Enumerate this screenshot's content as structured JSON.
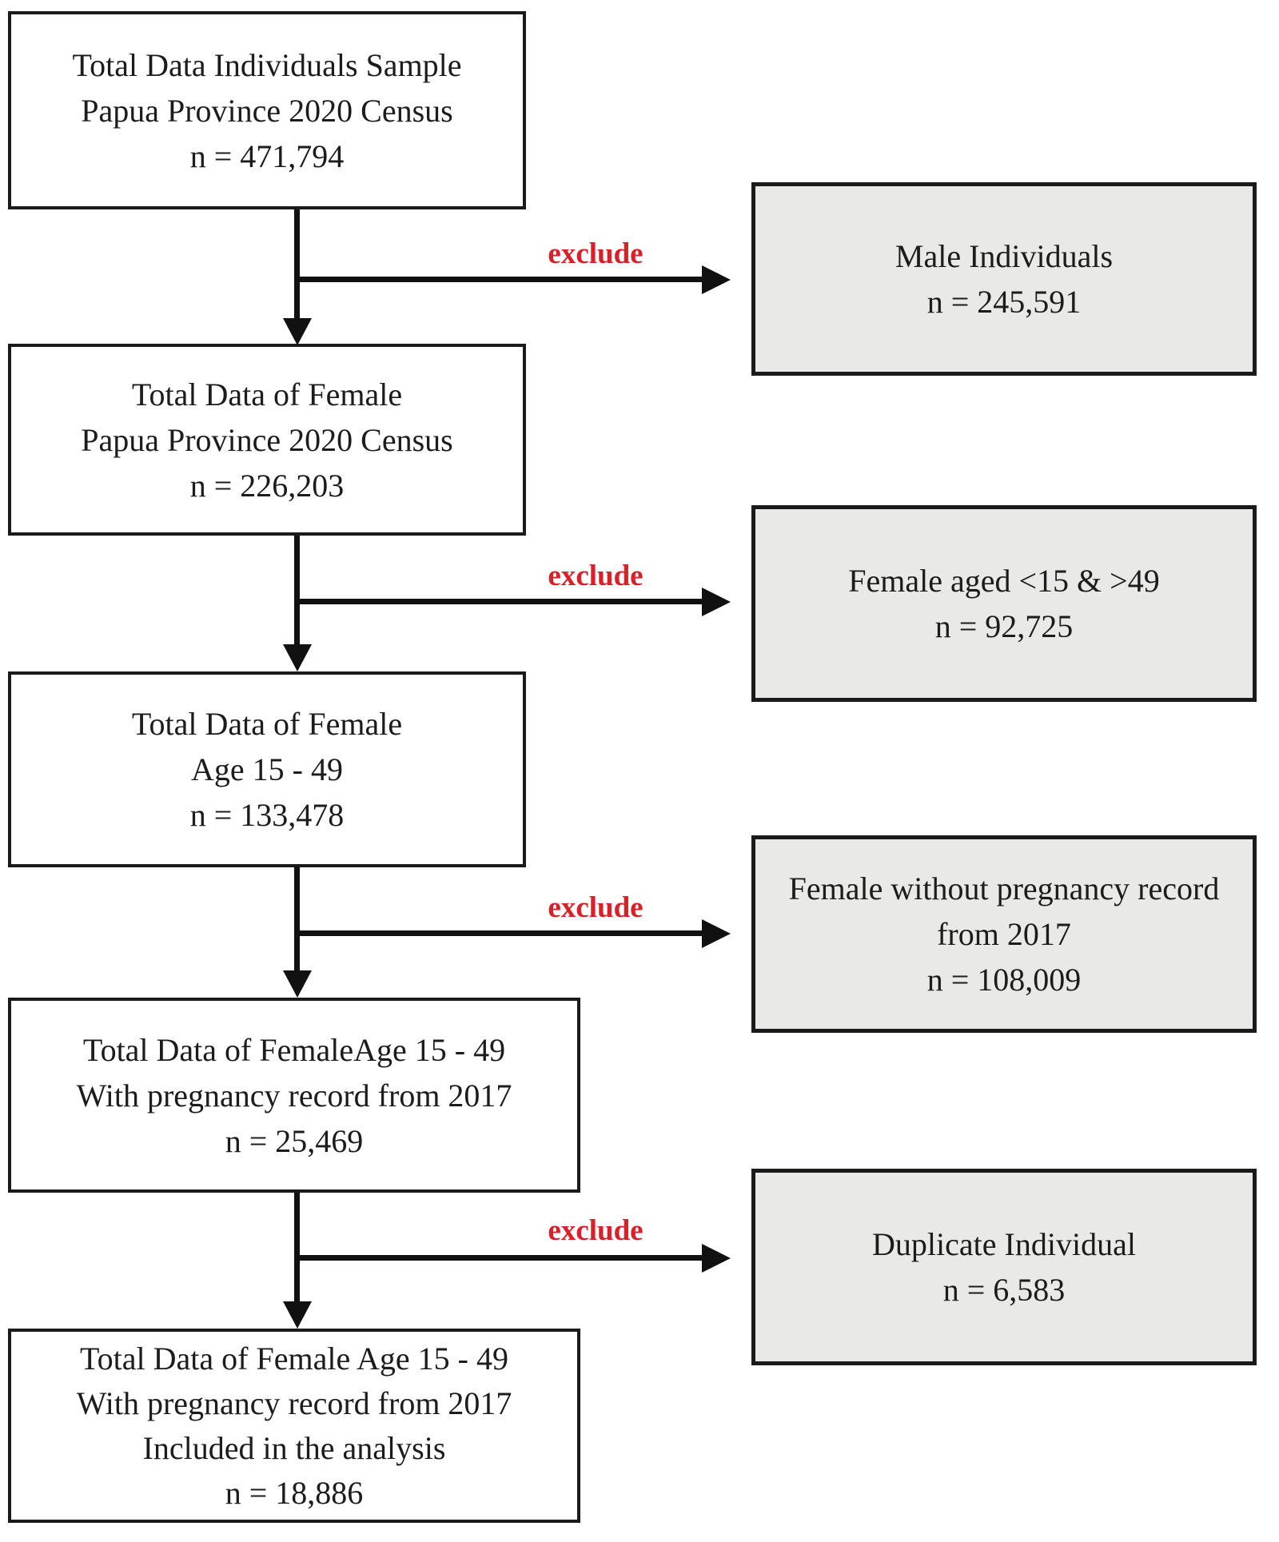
{
  "diagram": {
    "type": "study-flowchart",
    "exclude_label": "exclude",
    "colors": {
      "exclude_text": "#d91f27",
      "main_box_fill": "#ffffff",
      "exclusion_box_fill": "#e9e9e8",
      "border": "#1a1a1a"
    },
    "main_boxes": [
      {
        "lines": [
          "Total Data Individuals Sample",
          "Papua Province 2020 Census",
          "n = 471,794"
        ]
      },
      {
        "lines": [
          "Total Data of Female",
          "Papua Province 2020 Census",
          "n = 226,203"
        ]
      },
      {
        "lines": [
          "Total Data of Female",
          "Age 15 - 49",
          "n = 133,478"
        ]
      },
      {
        "lines": [
          "Total Data of FemaleAge 15 - 49",
          "With pregnancy record from 2017",
          "n = 25,469"
        ]
      },
      {
        "lines": [
          "Total Data of Female Age 15 - 49",
          "With pregnancy record from 2017",
          "Included in the analysis",
          "n = 18,886"
        ]
      }
    ],
    "exclusion_boxes": [
      {
        "lines": [
          "Male Individuals",
          "n = 245,591"
        ]
      },
      {
        "lines": [
          "Female aged <15 & >49",
          "n = 92,725"
        ]
      },
      {
        "lines": [
          "Female without pregnancy record",
          "from 2017",
          "n = 108,009"
        ]
      },
      {
        "lines": [
          "Duplicate Individual",
          "n = 6,583"
        ]
      }
    ]
  }
}
